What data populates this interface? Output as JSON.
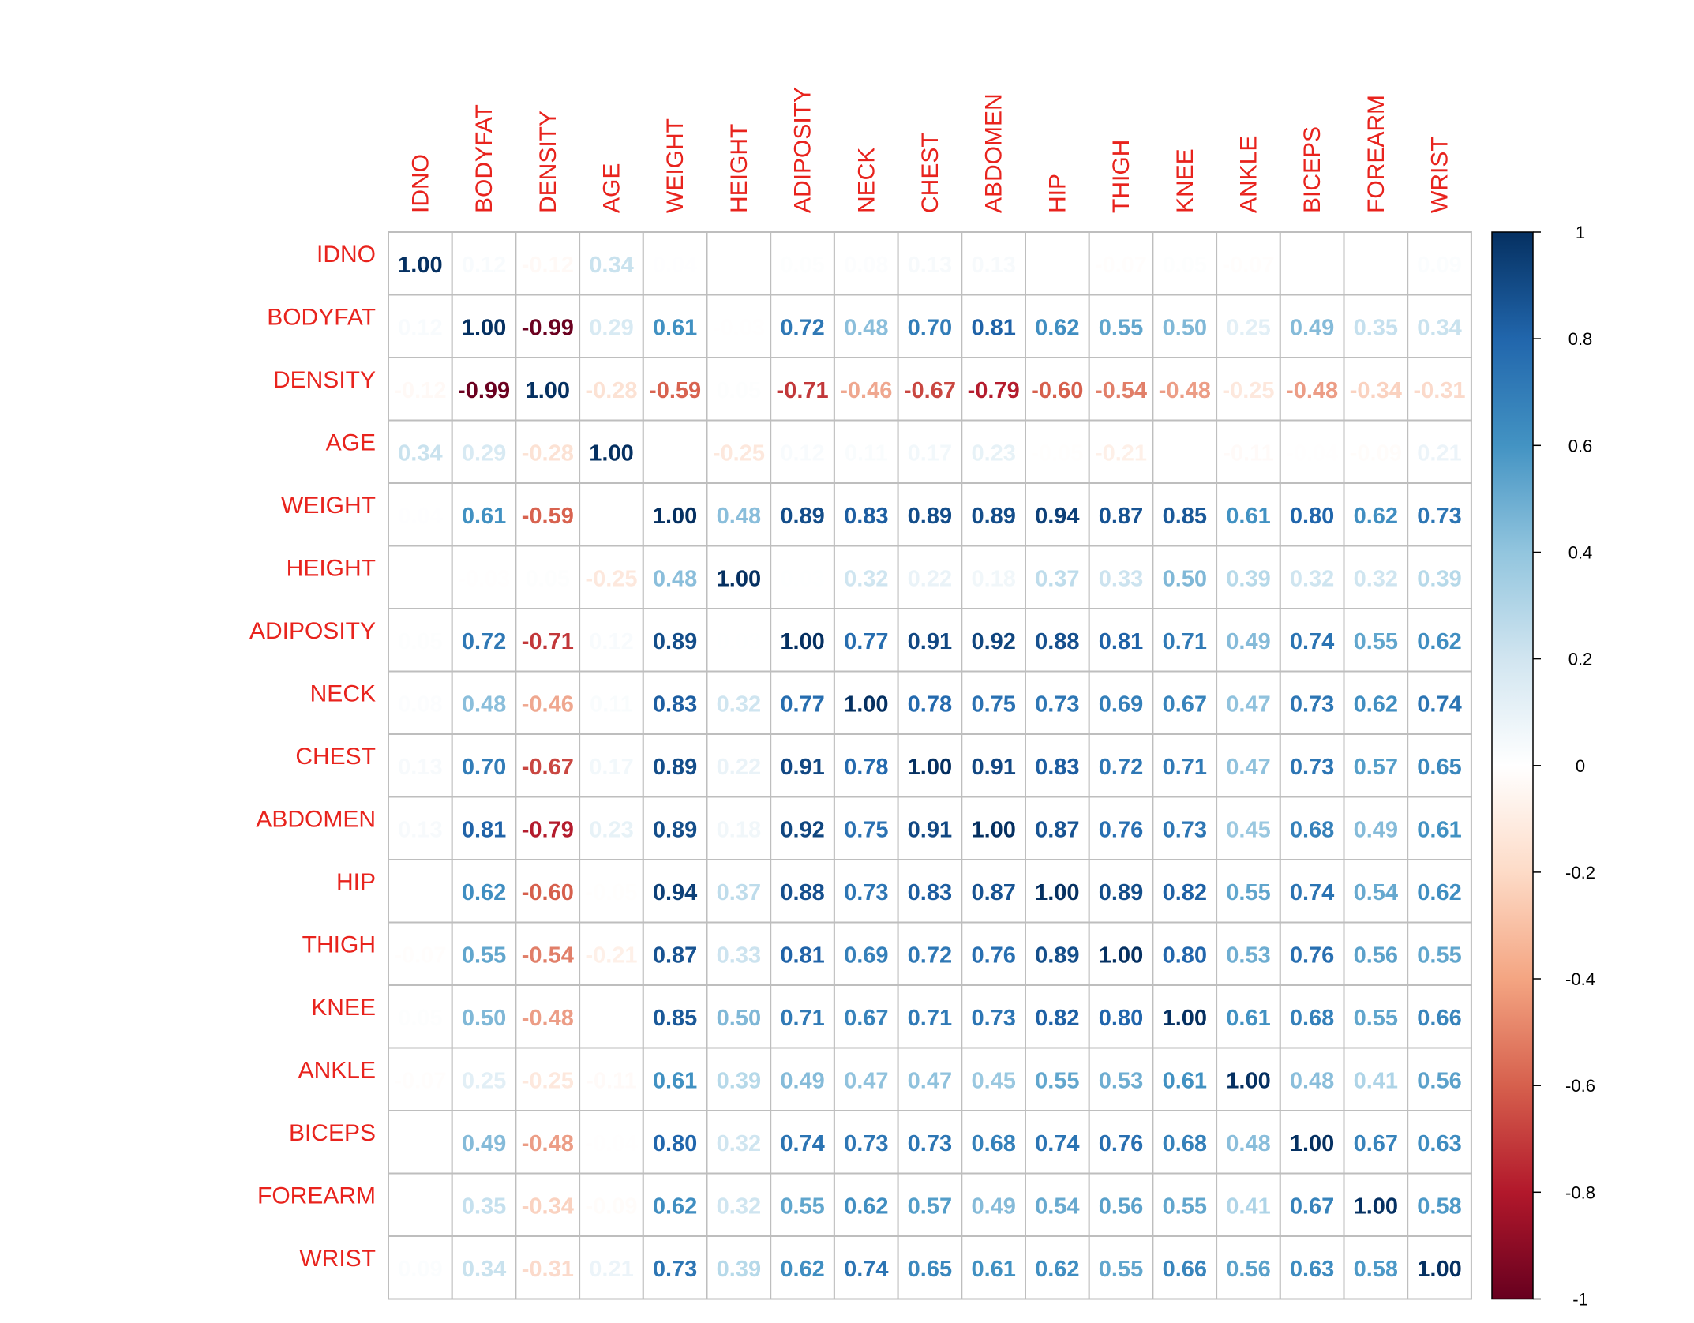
{
  "chart_data": {
    "type": "heatmap",
    "title": "",
    "variables": [
      "IDNO",
      "BODYFAT",
      "DENSITY",
      "AGE",
      "WEIGHT",
      "HEIGHT",
      "ADIPOSITY",
      "NECK",
      "CHEST",
      "ABDOMEN",
      "HIP",
      "THIGH",
      "KNEE",
      "ANKLE",
      "BICEPS",
      "FOREARM",
      "WRIST"
    ],
    "matrix": [
      [
        1.0,
        0.12,
        -0.12,
        0.34,
        0.04,
        -0.01,
        0.05,
        0.08,
        0.13,
        0.13,
        0.02,
        -0.07,
        0.05,
        -0.07,
        -0.01,
        0.0,
        0.09
      ],
      [
        0.12,
        1.0,
        -0.99,
        0.29,
        0.61,
        -0.03,
        0.72,
        0.48,
        0.7,
        0.81,
        0.62,
        0.55,
        0.5,
        0.25,
        0.49,
        0.35,
        0.34
      ],
      [
        -0.12,
        -0.99,
        1.0,
        -0.28,
        -0.59,
        0.05,
        -0.71,
        -0.46,
        -0.67,
        -0.79,
        -0.6,
        -0.54,
        -0.48,
        -0.25,
        -0.48,
        -0.34,
        -0.31
      ],
      [
        0.34,
        0.29,
        -0.28,
        1.0,
        0.02,
        -0.25,
        0.12,
        0.11,
        0.17,
        0.23,
        -0.05,
        -0.21,
        0.01,
        -0.11,
        -0.04,
        -0.09,
        0.21
      ],
      [
        0.04,
        0.61,
        -0.59,
        0.02,
        1.0,
        0.48,
        0.89,
        0.83,
        0.89,
        0.89,
        0.94,
        0.87,
        0.85,
        0.61,
        0.8,
        0.62,
        0.73
      ],
      [
        -0.01,
        -0.03,
        0.05,
        -0.25,
        0.48,
        1.0,
        0.03,
        0.32,
        0.22,
        0.18,
        0.37,
        0.33,
        0.5,
        0.39,
        0.32,
        0.32,
        0.39
      ],
      [
        0.05,
        0.72,
        -0.71,
        0.12,
        0.89,
        0.03,
        1.0,
        0.77,
        0.91,
        0.92,
        0.88,
        0.81,
        0.71,
        0.49,
        0.74,
        0.55,
        0.62
      ],
      [
        0.08,
        0.48,
        -0.46,
        0.11,
        0.83,
        0.32,
        0.77,
        1.0,
        0.78,
        0.75,
        0.73,
        0.69,
        0.67,
        0.47,
        0.73,
        0.62,
        0.74
      ],
      [
        0.13,
        0.7,
        -0.67,
        0.17,
        0.89,
        0.22,
        0.91,
        0.78,
        1.0,
        0.91,
        0.83,
        0.72,
        0.71,
        0.47,
        0.73,
        0.57,
        0.65
      ],
      [
        0.13,
        0.81,
        -0.79,
        0.23,
        0.89,
        0.18,
        0.92,
        0.75,
        0.91,
        1.0,
        0.87,
        0.76,
        0.73,
        0.45,
        0.68,
        0.49,
        0.61
      ],
      [
        0.02,
        0.62,
        -0.6,
        -0.05,
        0.94,
        0.37,
        0.88,
        0.73,
        0.83,
        0.87,
        1.0,
        0.89,
        0.82,
        0.55,
        0.74,
        0.54,
        0.62
      ],
      [
        -0.07,
        0.55,
        -0.54,
        -0.21,
        0.87,
        0.33,
        0.81,
        0.69,
        0.72,
        0.76,
        0.89,
        1.0,
        0.8,
        0.53,
        0.76,
        0.56,
        0.55
      ],
      [
        0.05,
        0.5,
        -0.48,
        0.01,
        0.85,
        0.5,
        0.71,
        0.67,
        0.71,
        0.73,
        0.82,
        0.8,
        1.0,
        0.61,
        0.68,
        0.55,
        0.66
      ],
      [
        -0.07,
        0.25,
        -0.25,
        -0.11,
        0.61,
        0.39,
        0.49,
        0.47,
        0.47,
        0.45,
        0.55,
        0.53,
        0.61,
        1.0,
        0.48,
        0.41,
        0.56
      ],
      [
        -0.01,
        0.49,
        -0.48,
        -0.04,
        0.8,
        0.32,
        0.74,
        0.73,
        0.73,
        0.68,
        0.74,
        0.76,
        0.68,
        0.48,
        1.0,
        0.67,
        0.63
      ],
      [
        0.0,
        0.35,
        -0.34,
        -0.09,
        0.62,
        0.32,
        0.55,
        0.62,
        0.57,
        0.49,
        0.54,
        0.56,
        0.55,
        0.41,
        0.67,
        1.0,
        0.58
      ],
      [
        0.09,
        0.34,
        -0.31,
        0.21,
        0.73,
        0.39,
        0.62,
        0.74,
        0.65,
        0.61,
        0.62,
        0.55,
        0.66,
        0.56,
        0.63,
        0.58,
        1.0
      ]
    ],
    "value_format": "2 decimals",
    "color_scale": {
      "range": [
        -1,
        1
      ],
      "ticks": [
        "1",
        "0.8",
        "0.6",
        "0.4",
        "0.2",
        "0",
        "-0.2",
        "-0.4",
        "-0.6",
        "-0.8",
        "-1"
      ],
      "colors": [
        "#67001F",
        "#B2182B",
        "#D6604D",
        "#F4A582",
        "#FDDBC7",
        "#FFFFFF",
        "#D1E5F0",
        "#92C5DE",
        "#4393C3",
        "#2166AC",
        "#053061"
      ]
    },
    "label_color": "#E8231D",
    "grid_color": "#BEBEBE",
    "legend": "right"
  }
}
